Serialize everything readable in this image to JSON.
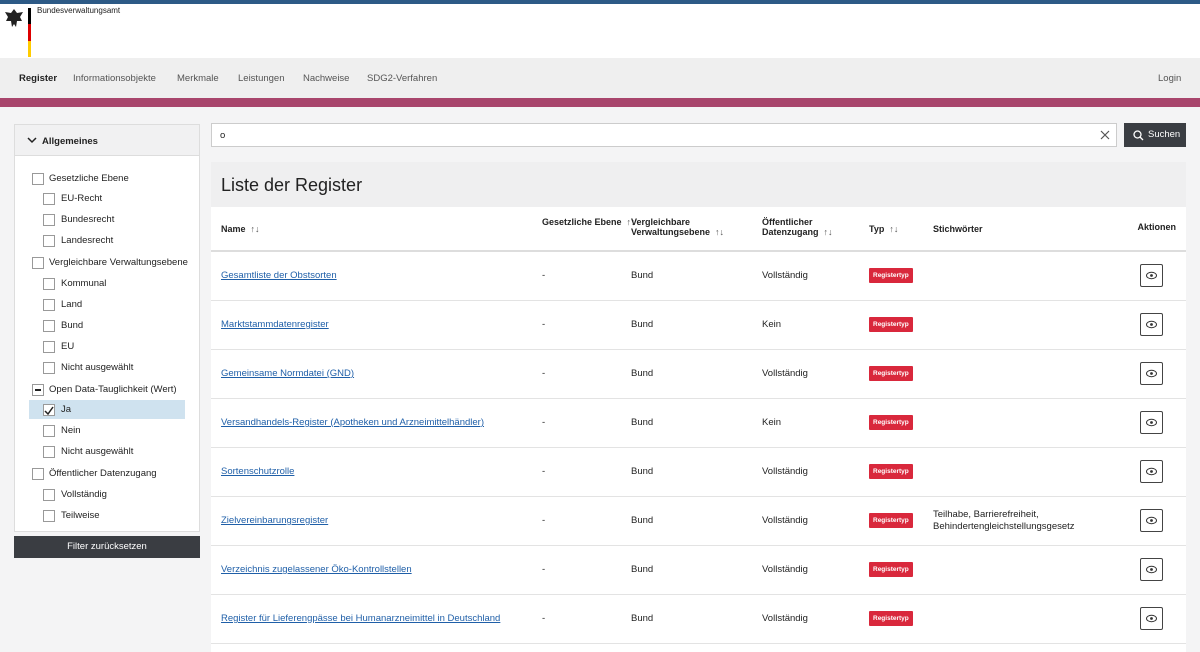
{
  "header": {
    "org": "Bundesverwaltungsamt"
  },
  "nav": {
    "items": [
      "Register",
      "Informationsobjekte",
      "Merkmale",
      "Leistungen",
      "Nachweise",
      "SDG2-Verfahren"
    ],
    "login": "Login"
  },
  "sidebar": {
    "section": "Allgemeines",
    "groups": [
      {
        "label": "Gesetzliche Ebene",
        "options": [
          "EU-Recht",
          "Bundesrecht",
          "Landesrecht"
        ]
      },
      {
        "label": "Vergleichbare Verwaltungsebene",
        "options": [
          "Kommunal",
          "Land",
          "Bund",
          "EU",
          "Nicht ausgewählt"
        ]
      },
      {
        "label": "Open Data-Tauglichkeit (Wert)",
        "options": [
          "Ja",
          "Nein",
          "Nicht ausgewählt"
        ]
      },
      {
        "label": "Öffentlicher Datenzugang",
        "options": [
          "Vollständig",
          "Teilweise"
        ]
      }
    ],
    "reset": "Filter zurücksetzen"
  },
  "search": {
    "query": "o",
    "button": "Suchen"
  },
  "list": {
    "title": "Liste der Register",
    "headers": [
      "Name",
      "Gesetzliche Ebene",
      "Vergleichbare Verwaltungsebene",
      "Öffentlicher Datenzugang",
      "Typ",
      "Stichwörter",
      "Aktionen"
    ],
    "rows": [
      [
        "Gesamtliste der Obstsorten",
        "-",
        "Bund",
        "Vollständig",
        "Registertyp",
        null
      ],
      [
        "Marktstammdatenregister",
        "-",
        "Bund",
        "Kein",
        "Registertyp",
        null
      ],
      [
        "Gemeinsame Normdatei (GND)",
        "-",
        "Bund",
        "Vollständig",
        "Registertyp",
        null
      ],
      [
        "Versandhandels-Register (Apotheken und Arzneimittelhändler)",
        "-",
        "Bund",
        "Kein",
        "Registertyp",
        null
      ],
      [
        "Sortenschutzrolle",
        "-",
        "Bund",
        "Vollständig",
        "Registertyp",
        null
      ],
      [
        "Zielvereinbarungsregister",
        "-",
        "Bund",
        "Vollständig",
        "Registertyp",
        "Teilhabe, Barrierefreiheit, Behindertengleichstellungsgesetz"
      ],
      [
        "Verzeichnis zugelassener Öko-Kontrollstellen",
        "-",
        "Bund",
        "Vollständig",
        "Registertyp",
        null
      ],
      [
        "Register für Lieferengpässe bei Humanarzneimittel in Deutschland",
        "-",
        "Bund",
        "Vollständig",
        "Registertyp",
        null
      ]
    ]
  }
}
